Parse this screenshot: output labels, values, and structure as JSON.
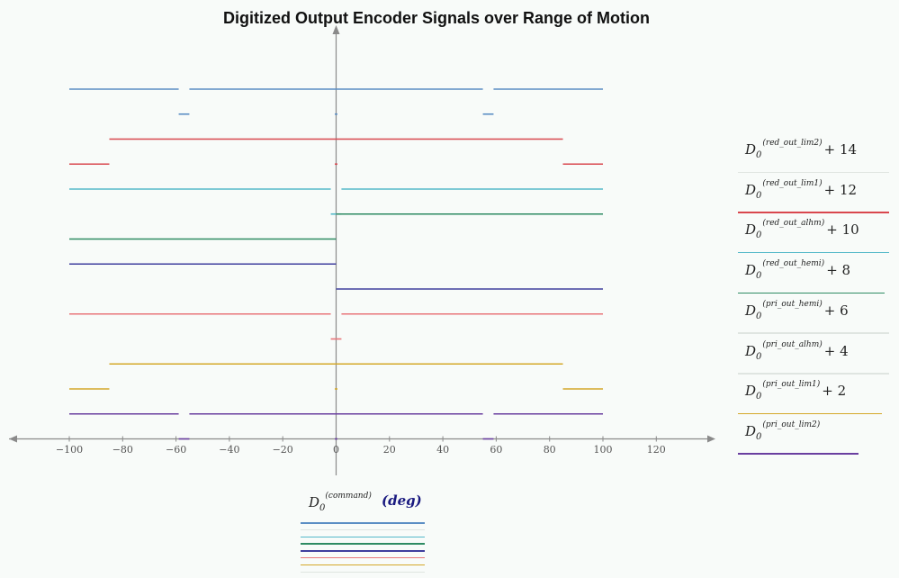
{
  "chart_data": {
    "type": "line",
    "title": "Digitized Output Encoder Signals over Range of Motion",
    "xlabel": {
      "base": "D",
      "subscript": "0",
      "superscript": "(command)",
      "unit": "deg"
    },
    "xlim": [
      -100,
      130
    ],
    "ylim": [
      0,
      15
    ],
    "x_ticks": [
      -100,
      -80,
      -60,
      -40,
      -20,
      0,
      20,
      40,
      60,
      80,
      100,
      120
    ],
    "grid": false,
    "legend_position": "right",
    "series": [
      {
        "name": "D0(red_out_lim2)+14",
        "base": "D",
        "subscript": "0",
        "superscript": "(red_out_lim2)",
        "offset": "+ 14",
        "color": "#5b8ec4",
        "segments": [
          {
            "x": [
              -100,
              -59
            ],
            "y": 14
          },
          {
            "x": [
              -55,
              55
            ],
            "y": 14
          },
          {
            "x": [
              59,
              100
            ],
            "y": 14
          },
          {
            "x": [
              -59,
              -55
            ],
            "y": 13
          },
          {
            "x": [
              -0.5,
              0.5
            ],
            "y": 13
          },
          {
            "x": [
              55,
              59
            ],
            "y": 13
          }
        ]
      },
      {
        "name": "D0(red_out_lim1)+12",
        "base": "D",
        "subscript": "0",
        "superscript": "(red_out_lim1)",
        "offset": "+ 12",
        "color": "#d9474e",
        "segments": [
          {
            "x": [
              -85,
              85
            ],
            "y": 12
          },
          {
            "x": [
              -100,
              -85
            ],
            "y": 11
          },
          {
            "x": [
              -0.5,
              0.5
            ],
            "y": 11
          },
          {
            "x": [
              85,
              100
            ],
            "y": 11
          }
        ]
      },
      {
        "name": "D0(red_out_alhm)+10",
        "base": "D",
        "subscript": "0",
        "superscript": "(red_out_alhm)",
        "offset": "+ 10",
        "color": "#55b9c9",
        "segments": [
          {
            "x": [
              -100,
              -2
            ],
            "y": 10
          },
          {
            "x": [
              2,
              100
            ],
            "y": 10
          },
          {
            "x": [
              -2,
              2
            ],
            "y": 9
          }
        ]
      },
      {
        "name": "D0(red_out_hemi)+8",
        "base": "D",
        "subscript": "0",
        "superscript": "(red_out_hemi)",
        "offset": "+ 8",
        "color": "#2e8b63",
        "segments": [
          {
            "x": [
              0,
              100
            ],
            "y": 9
          },
          {
            "x": [
              -100,
              0
            ],
            "y": 8
          }
        ]
      },
      {
        "name": "D0(pri_out_hemi)+6",
        "base": "D",
        "subscript": "0",
        "superscript": "(pri_out_hemi)",
        "offset": "+ 6",
        "color": "#3f3f9e",
        "segments": [
          {
            "x": [
              -100,
              0
            ],
            "y": 7
          },
          {
            "x": [
              0,
              100
            ],
            "y": 6
          }
        ]
      },
      {
        "name": "D0(pri_out_alhm)+4",
        "base": "D",
        "subscript": "0",
        "superscript": "(pri_out_alhm)",
        "offset": "+ 4",
        "color": "#e8767a",
        "segments": [
          {
            "x": [
              -100,
              -2
            ],
            "y": 5
          },
          {
            "x": [
              2,
              100
            ],
            "y": 5
          },
          {
            "x": [
              -2,
              2
            ],
            "y": 4
          }
        ]
      },
      {
        "name": "D0(pri_out_lim1)+2",
        "base": "D",
        "subscript": "0",
        "superscript": "(pri_out_lim1)",
        "offset": "+ 2",
        "color": "#d4a82a",
        "segments": [
          {
            "x": [
              -85,
              85
            ],
            "y": 3
          },
          {
            "x": [
              -100,
              -85
            ],
            "y": 2
          },
          {
            "x": [
              -0.5,
              0.5
            ],
            "y": 2
          },
          {
            "x": [
              85,
              100
            ],
            "y": 2
          }
        ]
      },
      {
        "name": "D0(pri_out_lim2)",
        "base": "D",
        "subscript": "0",
        "superscript": "(pri_out_lim2)",
        "offset": "",
        "color": "#6a3fa0",
        "segments": [
          {
            "x": [
              -100,
              -59
            ],
            "y": 1
          },
          {
            "x": [
              -55,
              55
            ],
            "y": 1
          },
          {
            "x": [
              59,
              100
            ],
            "y": 1
          },
          {
            "x": [
              -59,
              -55
            ],
            "y": 0
          },
          {
            "x": [
              -0.5,
              0.5
            ],
            "y": 0
          },
          {
            "x": [
              55,
              59
            ],
            "y": 0
          }
        ]
      }
    ]
  },
  "legend_underline_colors": [
    "#dfe5e1",
    "#d9474e",
    "#55b9c9",
    "#2e8b63",
    "#dfe5e1",
    "#dfe5e1",
    "#d4a82a",
    "#6a3fa0"
  ],
  "xaxis_swatch_colors": [
    "#5b8ec4",
    "#dfe5e1",
    "#55b9c9",
    "#2e8b63",
    "#3f3f9e",
    "#e8767a",
    "#d4a82a",
    "#dfe5e1"
  ]
}
